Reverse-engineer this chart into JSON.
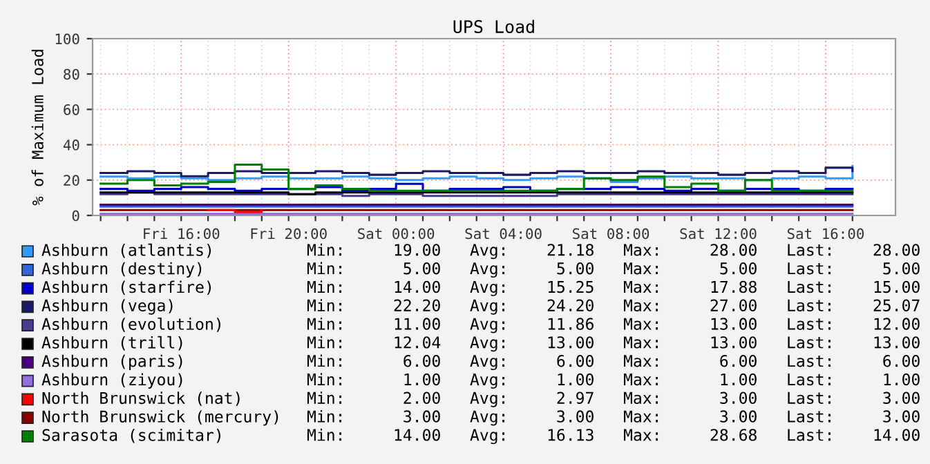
{
  "chart_data": {
    "type": "step",
    "title": "UPS Load",
    "ylabel": "% of Maximum Load",
    "categories": [
      null,
      null,
      null,
      "Fri 16:00",
      null,
      null,
      null,
      "Fri 20:00",
      null,
      null,
      null,
      "Sat 00:00",
      null,
      null,
      null,
      "Sat 04:00",
      null,
      null,
      null,
      "Sat 08:00",
      null,
      null,
      null,
      "Sat 12:00",
      null,
      null,
      null,
      "Sat 16:00",
      null
    ],
    "ylim": [
      0,
      100
    ],
    "yticks": [
      0,
      20,
      40,
      60,
      80,
      100
    ],
    "grid": true,
    "legend": "bottom",
    "series": [
      {
        "name": "Ashburn (atlantis)",
        "color": "#3399ff",
        "values": [
          22,
          21,
          22,
          21,
          20,
          21,
          22,
          21,
          21,
          22,
          21,
          20,
          21,
          22,
          21,
          20,
          21,
          22,
          21,
          19,
          21,
          22,
          21,
          21,
          20,
          21,
          22,
          21,
          28
        ]
      },
      {
        "name": "Ashburn (destiny)",
        "color": "#3366dd",
        "values": [
          5,
          5,
          5,
          5,
          5,
          5,
          5,
          5,
          5,
          5,
          5,
          5,
          5,
          5,
          5,
          5,
          5,
          5,
          5,
          5,
          5,
          5,
          5,
          5,
          5,
          5,
          5,
          5,
          5
        ]
      },
      {
        "name": "Ashburn (starfire)",
        "color": "#0000cc",
        "values": [
          15,
          14,
          15,
          16,
          15,
          14,
          15,
          15,
          16,
          14,
          15,
          17.88,
          14,
          15,
          15,
          16,
          14,
          15,
          15,
          16,
          15,
          14,
          15,
          14,
          15,
          15,
          14,
          15,
          15
        ]
      },
      {
        "name": "Ashburn (vega)",
        "color": "#1a1a66",
        "values": [
          24,
          25,
          24,
          22.2,
          24,
          25,
          24,
          24,
          25,
          24,
          23,
          24,
          25,
          24,
          24,
          23,
          24,
          25,
          24,
          24,
          25,
          24,
          24,
          23,
          24,
          25,
          24,
          27,
          25.07
        ]
      },
      {
        "name": "Ashburn (evolution)",
        "color": "#4a3d8f",
        "values": [
          12,
          13,
          12,
          12,
          12,
          12,
          12,
          12,
          12,
          11,
          12,
          12,
          11,
          11,
          11,
          11,
          11,
          12,
          12,
          12,
          12,
          12,
          12,
          12,
          12,
          12,
          12,
          12,
          12
        ]
      },
      {
        "name": "Ashburn (trill)",
        "color": "#000000",
        "values": [
          13,
          13,
          13,
          13,
          13,
          13,
          13,
          12.04,
          13,
          13,
          13,
          13,
          13,
          13,
          13,
          13,
          13,
          13,
          13,
          13,
          13,
          13,
          13,
          13,
          13,
          13,
          13,
          13,
          13
        ]
      },
      {
        "name": "Ashburn (paris)",
        "color": "#4b0082",
        "values": [
          6,
          6,
          6,
          6,
          6,
          6,
          6,
          6,
          6,
          6,
          6,
          6,
          6,
          6,
          6,
          6,
          6,
          6,
          6,
          6,
          6,
          6,
          6,
          6,
          6,
          6,
          6,
          6,
          6
        ]
      },
      {
        "name": "Ashburn (ziyou)",
        "color": "#9370db",
        "values": [
          1,
          1,
          1,
          1,
          1,
          1,
          1,
          1,
          1,
          1,
          1,
          1,
          1,
          1,
          1,
          1,
          1,
          1,
          1,
          1,
          1,
          1,
          1,
          1,
          1,
          1,
          1,
          1,
          1
        ]
      },
      {
        "name": "North Brunswick (nat)",
        "color": "#ff0000",
        "values": [
          null,
          null,
          null,
          null,
          3,
          2,
          3,
          null,
          null,
          null,
          null,
          null,
          null,
          null,
          null,
          null,
          null,
          null,
          null,
          null,
          null,
          null,
          null,
          null,
          null,
          null,
          null,
          null,
          null
        ]
      },
      {
        "name": "North Brunswick (mercury)",
        "color": "#8b0000",
        "values": [
          3,
          3,
          3,
          3,
          3,
          3,
          3,
          3,
          3,
          3,
          3,
          3,
          3,
          3,
          3,
          3,
          3,
          3,
          3,
          3,
          3,
          3,
          3,
          3,
          3,
          3,
          3,
          3,
          3
        ]
      },
      {
        "name": "Sarasota (scimitar)",
        "color": "#008000",
        "values": [
          18,
          20,
          17,
          18,
          19,
          28.68,
          26,
          15,
          17,
          15,
          14,
          14,
          14,
          14,
          14,
          14,
          14,
          15,
          21,
          20,
          22,
          16,
          18,
          14,
          20,
          14,
          14,
          14,
          14
        ]
      }
    ],
    "annotations": [
      "Min:     19.00   Avg:    21.18   Max:     28.00   Last:    28.00",
      "Min:      5.00   Avg:     5.00   Max:      5.00   Last:     5.00",
      "Min:     14.00   Avg:    15.25   Max:     17.88   Last:    15.00",
      "Min:     22.20   Avg:    24.20   Max:     27.00   Last:    25.07",
      "Min:     11.00   Avg:    11.86   Max:     13.00   Last:    12.00",
      "Min:     12.04   Avg:    13.00   Max:     13.00   Last:    13.00",
      "Min:      6.00   Avg:     6.00   Max:      6.00   Last:     6.00",
      "Min:      1.00   Avg:     1.00   Max:      1.00   Last:     1.00",
      "Min:      2.00   Avg:     2.97   Max:      3.00   Last:     3.00",
      "Min:      3.00   Avg:     3.00   Max:      3.00   Last:     3.00",
      "Min:     14.00   Avg:    16.13   Max:     28.68   Last:    14.00"
    ]
  }
}
